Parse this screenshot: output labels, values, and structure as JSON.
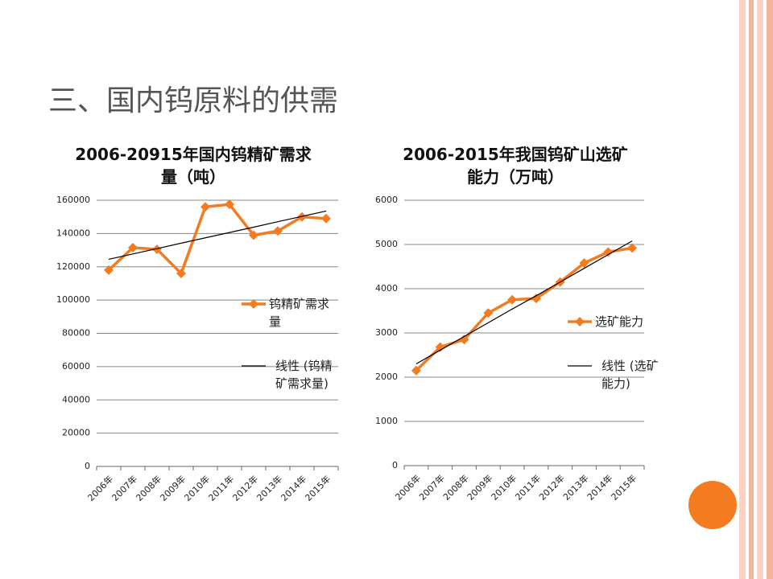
{
  "title": "三、国内钨原料的供需",
  "chart_data": [
    {
      "type": "line",
      "title": "2006-20915年国内钨精矿需求量（吨）",
      "categories": [
        "2006年",
        "2007年",
        "2008年",
        "2009年",
        "2010年",
        "2011年",
        "2012年",
        "2013年",
        "2014年",
        "2015年"
      ],
      "series": [
        {
          "name": "钨精矿需求量",
          "color": "#f47b20",
          "marker": "diamond",
          "values": [
            118000,
            131500,
            130500,
            116000,
            156000,
            157500,
            139000,
            141500,
            150000,
            149000
          ]
        },
        {
          "name": "线性 (钨精矿需求量)",
          "color": "#000000",
          "values": [
            124500,
            127700,
            130900,
            134200,
            137400,
            140600,
            143800,
            147100,
            150300,
            153500
          ]
        }
      ],
      "ylim": [
        0,
        160000
      ],
      "yticks": [
        0,
        20000,
        40000,
        60000,
        80000,
        100000,
        120000,
        140000,
        160000
      ],
      "grid": true,
      "legend": "right"
    },
    {
      "type": "line",
      "title": "2006-2015年我国钨矿山选矿能力（万吨）",
      "categories": [
        "2006年",
        "2007年",
        "2008年",
        "2009年",
        "2010年",
        "2011年",
        "2012年",
        "2013年",
        "2014年",
        "2015年"
      ],
      "series": [
        {
          "name": "选矿能力",
          "color": "#f47b20",
          "marker": "diamond",
          "values": [
            2150,
            2680,
            2850,
            3450,
            3750,
            3780,
            4150,
            4580,
            4830,
            4920
          ]
        },
        {
          "name": "线性 (选矿能力)",
          "color": "#000000",
          "values": [
            2300,
            2610,
            2920,
            3230,
            3540,
            3840,
            4150,
            4460,
            4770,
            5080
          ]
        }
      ],
      "ylim": [
        0,
        6000
      ],
      "yticks": [
        0,
        1000,
        2000,
        3000,
        4000,
        5000,
        6000
      ],
      "grid": true,
      "legend": "right"
    }
  ]
}
